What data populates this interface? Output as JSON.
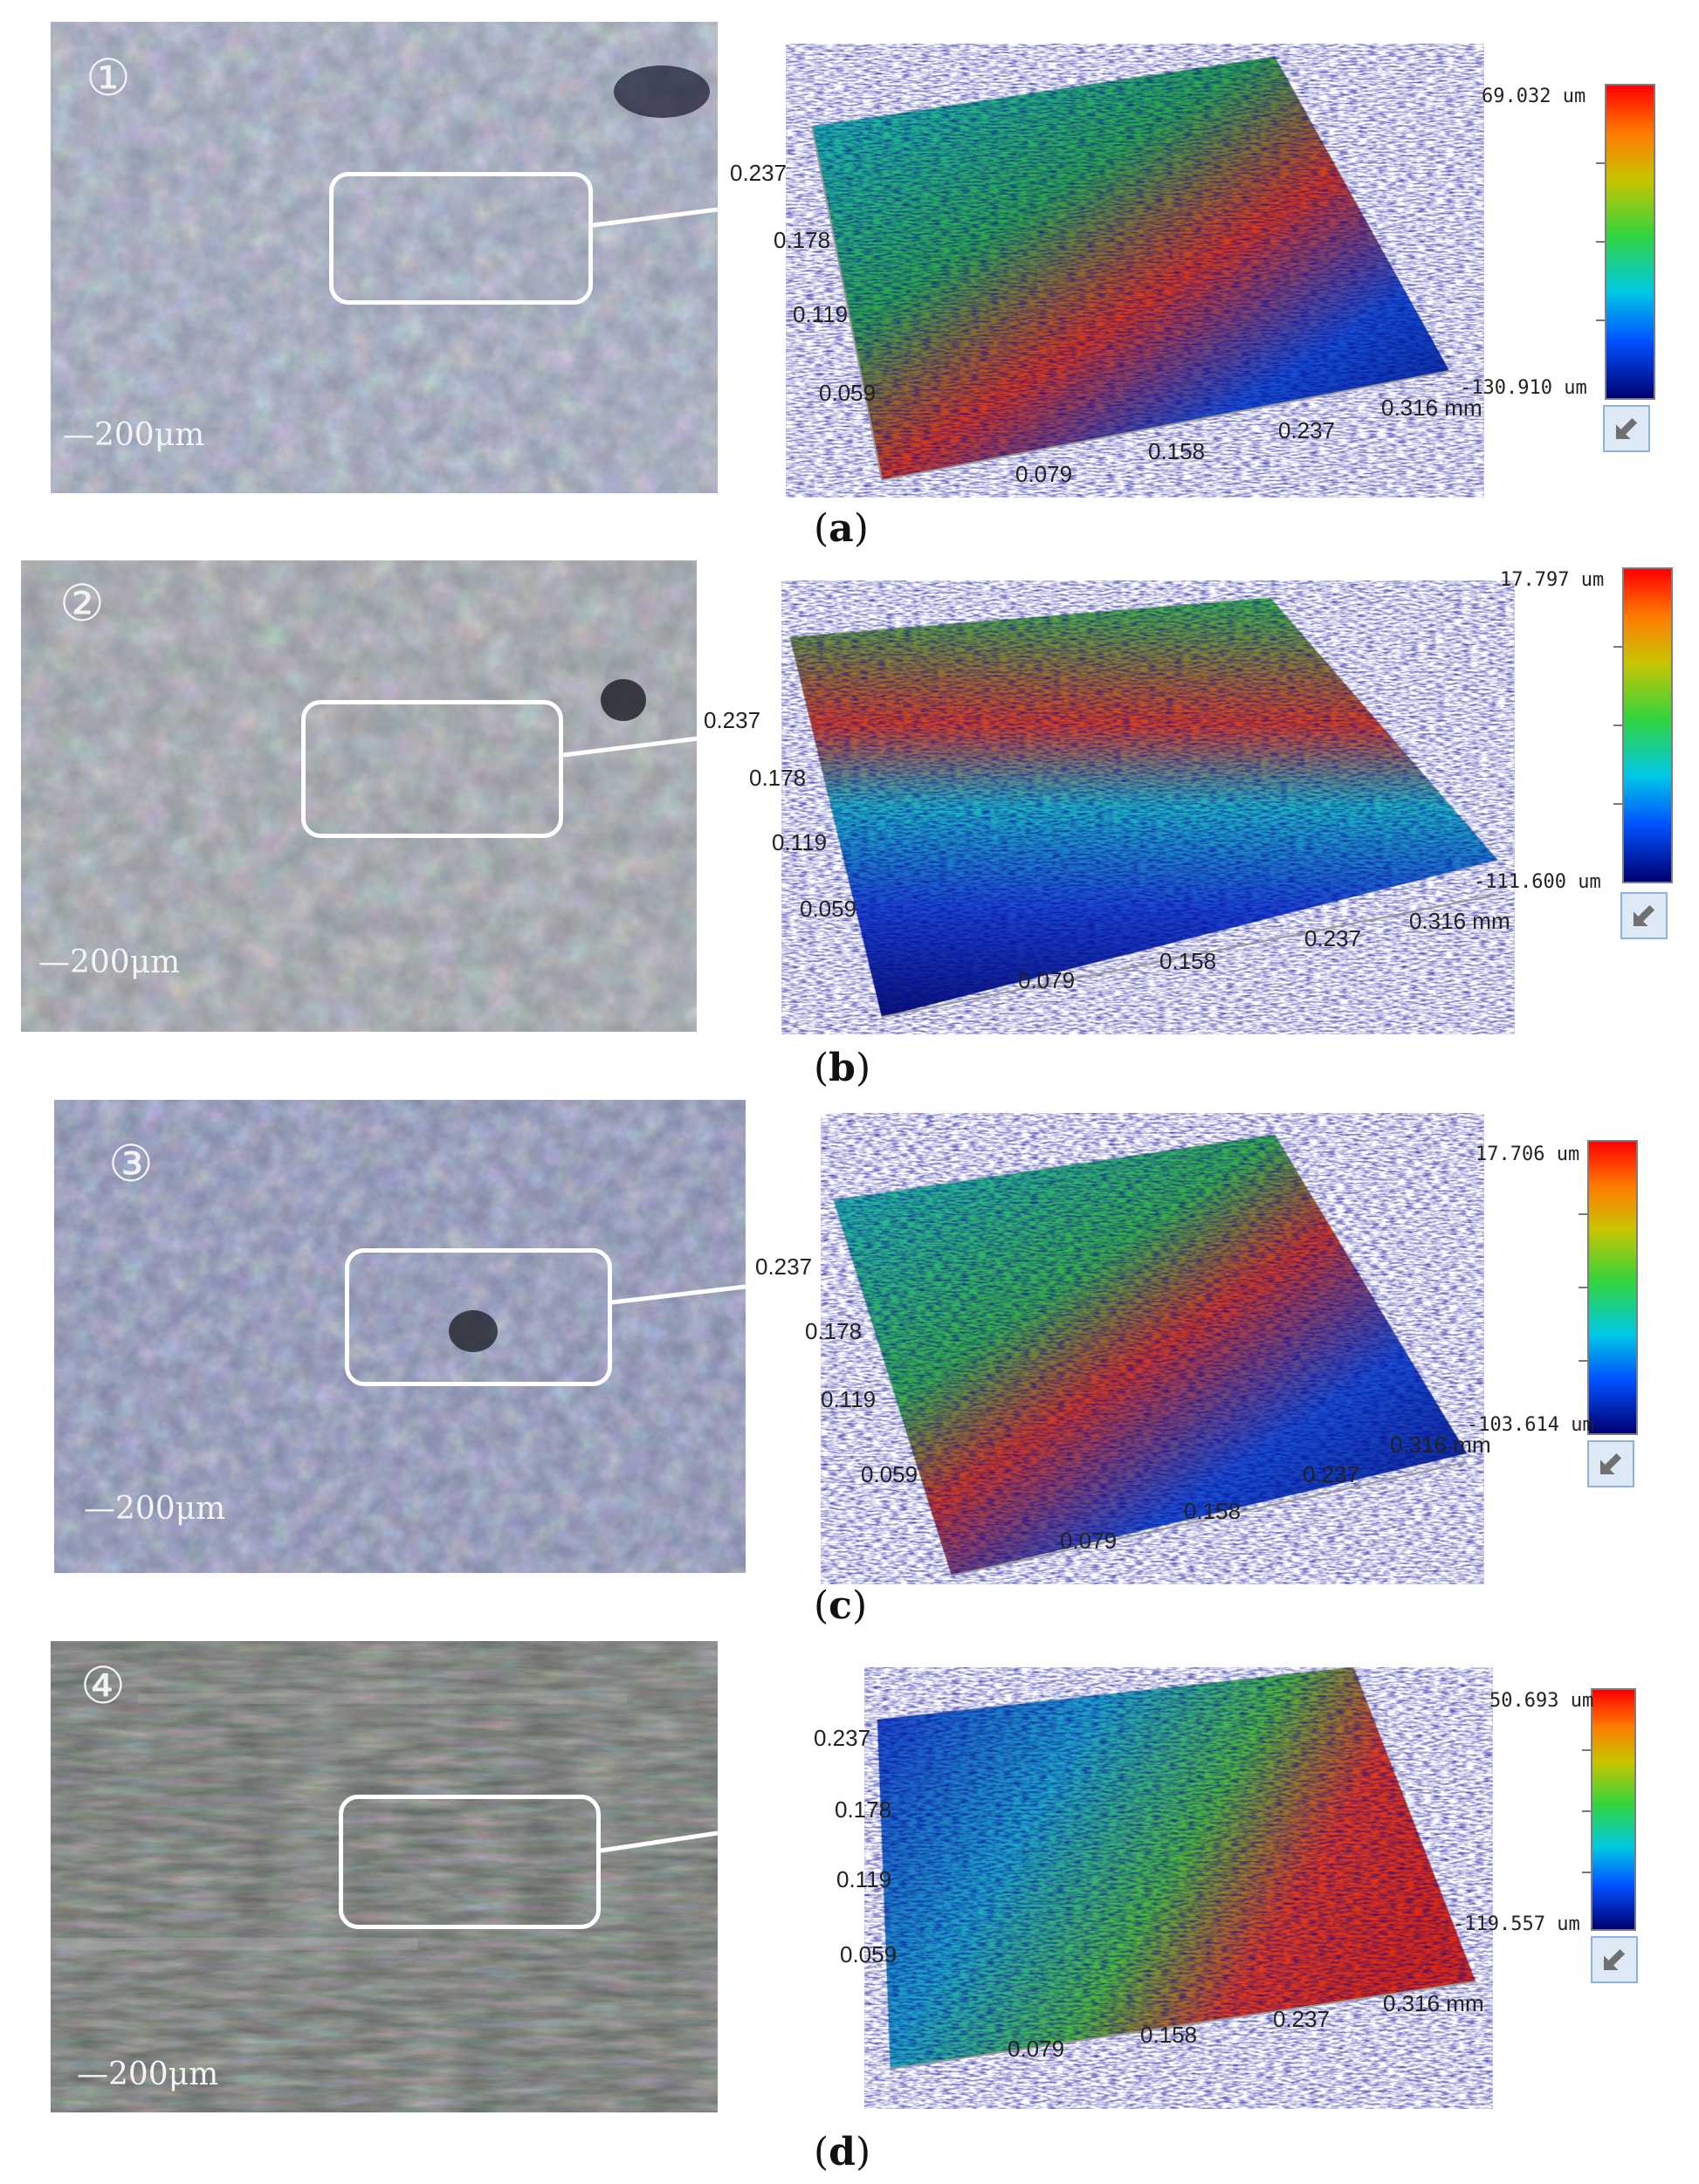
{
  "panels": [
    {
      "marker": "①",
      "scale": "—200μm",
      "ticks_left": [
        "0.237",
        "0.178",
        "0.119",
        "0.059"
      ],
      "ticks_bottom": [
        "0.079",
        "0.158",
        "0.237",
        "0.316 mm"
      ],
      "cbar_max": "69.032 um",
      "cbar_min": "-130.910 um",
      "caption_letter": "a"
    },
    {
      "marker": "②",
      "scale": "—200μm",
      "ticks_left": [
        "0.237",
        "0.178",
        "0.119",
        "0.059"
      ],
      "ticks_bottom": [
        "0.079",
        "0.158",
        "0.237",
        "0.316 mm"
      ],
      "cbar_max": "17.797 um",
      "cbar_min": "-111.600 um",
      "caption_letter": "b"
    },
    {
      "marker": "③",
      "scale": "—200μm",
      "ticks_left": [
        "0.237",
        "0.178",
        "0.119",
        "0.059"
      ],
      "ticks_bottom": [
        "0.079",
        "0.158",
        "0.237",
        "0.316 mm"
      ],
      "cbar_max": "17.706 um",
      "cbar_min": "-103.614 um",
      "caption_letter": "c"
    },
    {
      "marker": "④",
      "scale": "—200μm",
      "ticks_left": [
        "0.237",
        "0.178",
        "0.119",
        "0.059"
      ],
      "ticks_bottom": [
        "0.079",
        "0.158",
        "0.237",
        "0.316 mm"
      ],
      "cbar_max": "50.693 um",
      "cbar_min": "-119.557 um",
      "caption_letter": "d"
    }
  ],
  "colors": {
    "colormap": [
      "#ff0000",
      "#ff7a00",
      "#c9c400",
      "#32d43e",
      "#00c8e6",
      "#0050ff",
      "#000070"
    ],
    "photo_tones": [
      "#8c93a6",
      "#6d7590",
      "#9aa39b",
      "#5e6072"
    ]
  }
}
